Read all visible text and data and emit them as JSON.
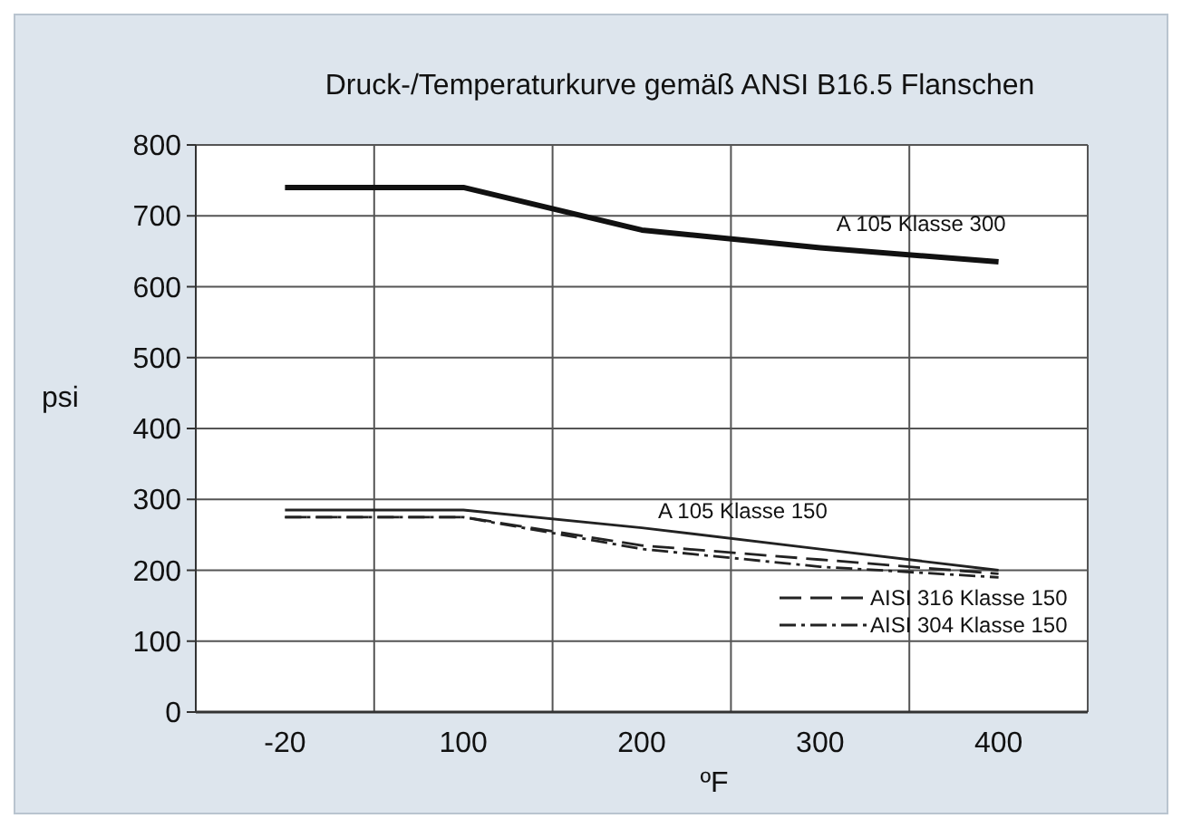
{
  "chart_data": {
    "type": "line",
    "title": "Druck-/Temperaturkurve gemäß ANSI B16.5 Flanschen",
    "xlabel": "ºF",
    "ylabel": "psi",
    "categories": [
      "-20",
      "100",
      "200",
      "300",
      "400"
    ],
    "series": [
      {
        "color": "#111111",
        "line_style": "solid",
        "values": [
          740,
          740,
          680,
          655,
          635
        ]
      },
      {
        "color": "#222222",
        "line_style": "solid",
        "values": [
          285,
          285,
          260,
          230,
          200
        ]
      },
      {
        "name": "AISI 316 Klasse 150",
        "color": "#222222",
        "line_style": "dashed",
        "values": [
          275,
          275,
          235,
          215,
          195
        ]
      },
      {
        "name": "AISI 304 Klasse 150",
        "color": "#222222",
        "line_style": "dashdot",
        "values": [
          275,
          275,
          230,
          205,
          190
        ]
      }
    ],
    "annotations": [
      {
        "text": "A 105 Klasse 300",
        "x": "400",
        "y": 635
      },
      {
        "text": "A 105 Klasse 150",
        "x": "300",
        "y": 230
      }
    ],
    "ylim": [
      0,
      800
    ],
    "yticks": [
      0,
      100,
      200,
      300,
      400,
      500,
      600,
      700,
      800
    ],
    "grid": true,
    "legend": "bottom right",
    "marker": "none"
  }
}
